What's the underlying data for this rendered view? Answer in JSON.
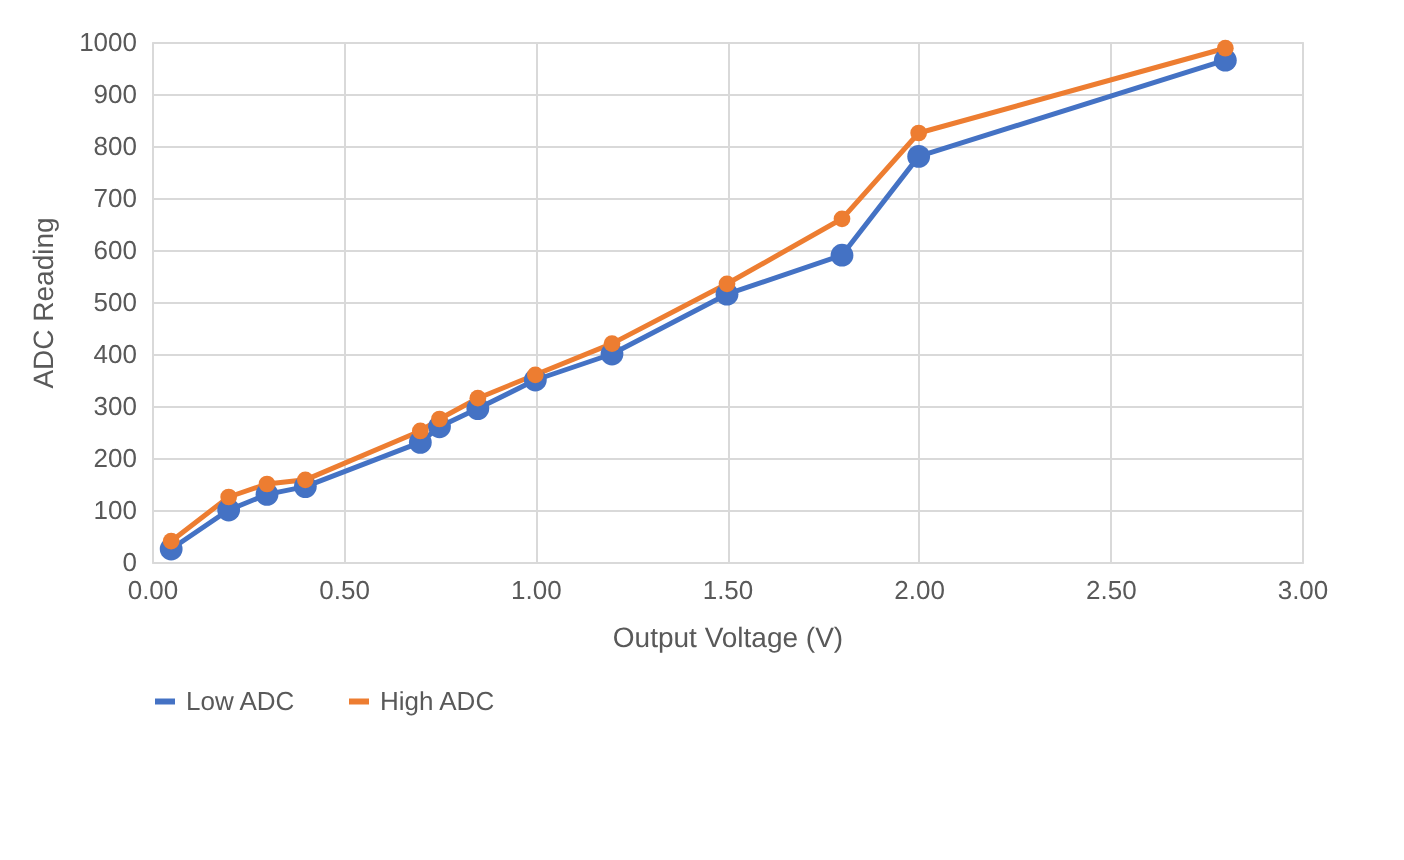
{
  "chart_data": {
    "type": "line",
    "xlabel": "Output Voltage (V)",
    "ylabel": "ADC Reading",
    "x": [
      0.05,
      0.2,
      0.3,
      0.4,
      0.7,
      0.75,
      0.85,
      1.0,
      1.2,
      1.5,
      1.8,
      2.0,
      2.8
    ],
    "series": [
      {
        "name": "Low ADC",
        "color": "#4472c4",
        "values": [
          25,
          100,
          130,
          145,
          230,
          260,
          295,
          350,
          400,
          515,
          590,
          780,
          965
        ]
      },
      {
        "name": "High ADC",
        "color": "#ed7d31",
        "values": [
          40,
          125,
          150,
          158,
          252,
          275,
          315,
          360,
          420,
          535,
          660,
          825,
          988
        ]
      }
    ],
    "xlim": [
      0,
      3
    ],
    "xticks": [
      {
        "value": 0,
        "label": "0.00"
      },
      {
        "value": 0.5,
        "label": "0.50"
      },
      {
        "value": 1,
        "label": "1.00"
      },
      {
        "value": 1.5,
        "label": "1.50"
      },
      {
        "value": 2,
        "label": "2.00"
      },
      {
        "value": 2.5,
        "label": "2.50"
      },
      {
        "value": 3,
        "label": "3.00"
      }
    ],
    "ylim": [
      0,
      1000
    ],
    "yticks": [
      0,
      100,
      200,
      300,
      400,
      500,
      600,
      700,
      800,
      900,
      1000
    ],
    "grid": true,
    "legend": "bottom",
    "marker": "circle",
    "line_style": "solid"
  }
}
